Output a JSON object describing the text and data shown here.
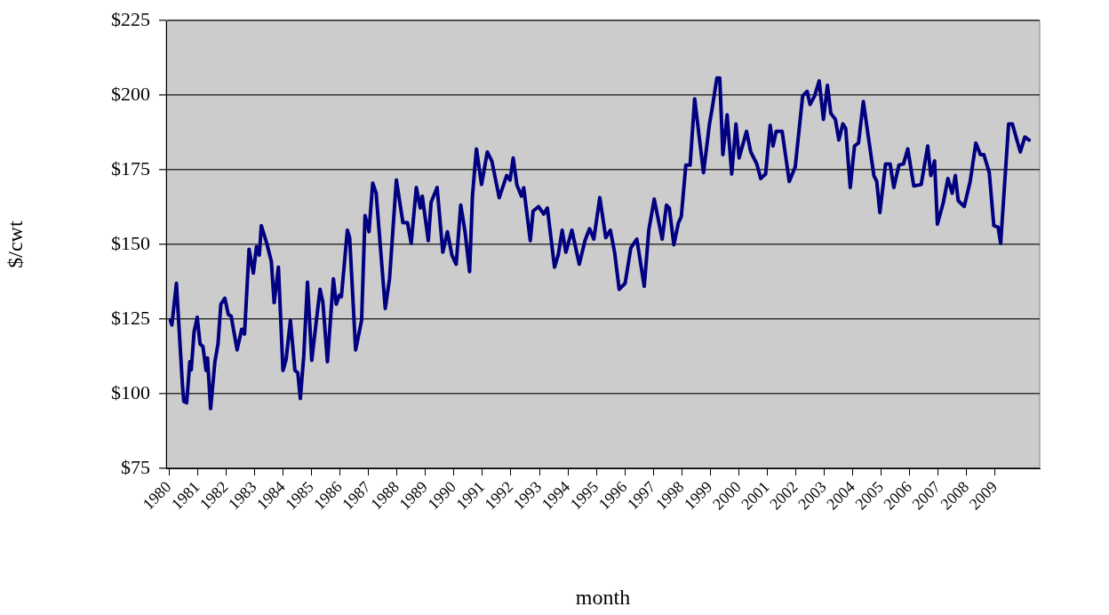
{
  "chart_data": {
    "type": "line",
    "xlabel": "month",
    "ylabel": "$/cwt",
    "grid": "y",
    "legend": false,
    "marker": "none",
    "line_style": "solid",
    "xlim": [
      1979.9,
      2010.56
    ],
    "xticks": [
      1980,
      1981,
      1982,
      1983,
      1984,
      1985,
      1986,
      1987,
      1988,
      1989,
      1990,
      1991,
      1992,
      1993,
      1994,
      1995,
      1996,
      1997,
      1998,
      1999,
      2000,
      2001,
      2002,
      2003,
      2004,
      2005,
      2006,
      2007,
      2008,
      2009
    ],
    "ylim": [
      75,
      225
    ],
    "yticks": [
      {
        "value": 75,
        "label": "$75"
      },
      {
        "value": 100,
        "label": "$100"
      },
      {
        "value": 125,
        "label": "$125"
      },
      {
        "value": 150,
        "label": "$150"
      },
      {
        "value": 175,
        "label": "$175"
      },
      {
        "value": 200,
        "label": "$200"
      },
      {
        "value": 225,
        "label": "$225"
      }
    ],
    "series": [
      {
        "color": "#000080",
        "x": [
          1980.05,
          1980.1,
          1980.26,
          1980.47,
          1980.52,
          1980.62,
          1980.73,
          1980.78,
          1980.88,
          1980.99,
          1981.09,
          1981.19,
          1981.3,
          1981.35,
          1981.46,
          1981.61,
          1981.72,
          1981.82,
          1981.96,
          1982.08,
          1982.18,
          1982.39,
          1982.55,
          1982.65,
          1982.81,
          1982.96,
          1983.07,
          1983.17,
          1983.24,
          1983.43,
          1983.59,
          1983.69,
          1983.84,
          1984.0,
          1984.11,
          1984.26,
          1984.42,
          1984.52,
          1984.61,
          1984.73,
          1984.86,
          1985.01,
          1985.3,
          1985.4,
          1985.56,
          1985.77,
          1985.87,
          1985.98,
          1986.05,
          1986.26,
          1986.34,
          1986.55,
          1986.76,
          1986.88,
          1987.02,
          1987.15,
          1987.27,
          1987.59,
          1987.74,
          1987.98,
          1988.21,
          1988.37,
          1988.5,
          1988.68,
          1988.82,
          1988.89,
          1989.1,
          1989.2,
          1989.41,
          1989.61,
          1989.77,
          1989.93,
          1990.08,
          1990.24,
          1990.39,
          1990.55,
          1990.65,
          1990.79,
          1990.97,
          1991.17,
          1991.33,
          1991.59,
          1991.85,
          1991.97,
          1992.08,
          1992.21,
          1992.37,
          1992.45,
          1992.68,
          1992.78,
          1992.97,
          1993.15,
          1993.28,
          1993.53,
          1993.66,
          1993.8,
          1993.93,
          1994.14,
          1994.4,
          1994.6,
          1994.76,
          1994.91,
          1995.12,
          1995.33,
          1995.49,
          1995.64,
          1995.8,
          1996.01,
          1996.21,
          1996.42,
          1996.68,
          1996.84,
          1997.03,
          1997.31,
          1997.46,
          1997.56,
          1997.72,
          1997.88,
          1997.98,
          1998.14,
          1998.29,
          1998.45,
          1998.76,
          1998.97,
          1999.07,
          1999.23,
          1999.33,
          1999.44,
          1999.59,
          1999.75,
          1999.9,
          2000.01,
          2000.27,
          2000.42,
          2000.63,
          2000.77,
          2000.94,
          2001.1,
          2001.2,
          2001.31,
          2001.52,
          2001.77,
          2001.98,
          2002.24,
          2002.4,
          2002.5,
          2002.66,
          2002.82,
          2002.97,
          2003.11,
          2003.23,
          2003.39,
          2003.51,
          2003.65,
          2003.75,
          2003.91,
          2004.06,
          2004.2,
          2004.37,
          2004.74,
          2004.84,
          2004.95,
          2005.15,
          2005.31,
          2005.44,
          2005.62,
          2005.78,
          2005.93,
          2006.14,
          2006.4,
          2006.63,
          2006.74,
          2006.87,
          2006.97,
          2007.18,
          2007.34,
          2007.49,
          2007.6,
          2007.7,
          2007.91,
          2008.12,
          2008.32,
          2008.48,
          2008.6,
          2008.79,
          2008.95,
          2009.1,
          2009.19,
          2009.47,
          2009.6,
          2009.88,
          2010.04,
          2010.19
        ],
        "values": [
          124.6,
          123,
          137,
          103,
          97.4,
          97,
          110.7,
          108,
          120.7,
          125.6,
          116.7,
          115.8,
          107.8,
          112,
          95,
          110.7,
          116.7,
          130,
          132,
          126.6,
          126,
          114.7,
          121.6,
          120,
          148.4,
          140.4,
          149.3,
          146.4,
          156.3,
          150.4,
          144.4,
          130.5,
          142.4,
          107.8,
          111.5,
          124.6,
          107.8,
          107,
          98.4,
          112.7,
          137.4,
          111.2,
          135,
          130.7,
          110.7,
          138.5,
          130,
          133,
          132.5,
          154.8,
          152.3,
          114.7,
          124.6,
          159.7,
          154.3,
          170.6,
          167.2,
          128.6,
          138.5,
          171.6,
          157.3,
          157.3,
          150.4,
          169.1,
          162.2,
          166.2,
          151.3,
          164.2,
          169.1,
          147.4,
          154.3,
          146.4,
          143.4,
          163.2,
          154.3,
          140.9,
          166.2,
          182,
          170.1,
          181,
          178,
          165.7,
          173.1,
          171.6,
          179,
          170,
          166.2,
          169,
          151.3,
          161.2,
          162.7,
          160.2,
          162.2,
          142.4,
          146.4,
          154.8,
          147.4,
          154.8,
          143.4,
          151.3,
          155.3,
          151.8,
          165.7,
          152.3,
          154.8,
          147.4,
          135,
          137,
          148.9,
          151.8,
          136,
          154.8,
          165.2,
          151.8,
          163.2,
          162.2,
          149.9,
          157.3,
          159.3,
          176.6,
          176.6,
          198.8,
          174.1,
          190.4,
          195.9,
          205.8,
          205.8,
          180.1,
          193.4,
          173.6,
          190.4,
          179,
          187.9,
          181,
          177,
          172.1,
          173.6,
          189.9,
          183,
          187.9,
          187.9,
          171.1,
          176,
          199.8,
          201.3,
          196.9,
          199.8,
          204.8,
          191.9,
          203.3,
          193.9,
          191.9,
          185,
          190.4,
          188.9,
          169.1,
          183,
          184,
          197.9,
          173.1,
          171.1,
          160.7,
          177,
          177,
          169.1,
          176.6,
          177,
          182,
          169.6,
          170.1,
          183,
          173.1,
          178,
          156.8,
          164.2,
          172.1,
          167.2,
          173.1,
          164.7,
          162.7,
          171.1,
          184,
          180.1,
          180.1,
          174.1,
          156.3,
          155.8,
          150.4,
          190.4,
          190.4,
          181,
          186,
          185
        ]
      }
    ]
  }
}
